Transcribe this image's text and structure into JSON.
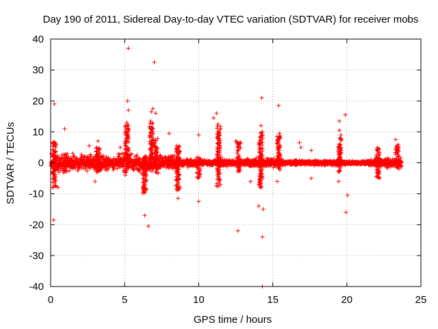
{
  "chart_data": {
    "type": "scatter",
    "title": "Day 190 of 2011, Sidereal Day-to-day VTEC variation (SDTVAR) for receiver mobs",
    "xlabel": "GPS time / hours",
    "ylabel": "SDTVAR / TECUs",
    "xlim": [
      0,
      25
    ],
    "ylim": [
      -40,
      40
    ],
    "xticks": [
      0,
      5,
      10,
      15,
      20,
      25
    ],
    "yticks": [
      -40,
      -30,
      -20,
      -10,
      0,
      10,
      20,
      30,
      40
    ],
    "grid": true,
    "marker": "+",
    "color": "#ff0000",
    "band": {
      "description": "dense continuous band of points around zero from 0 to ~23.7 h",
      "x_start": 0.0,
      "x_end": 23.7,
      "half_width_by_time": [
        [
          0.0,
          3.2
        ],
        [
          0.5,
          2.8
        ],
        [
          1.0,
          2.6
        ],
        [
          2.0,
          2.3
        ],
        [
          3.0,
          2.6
        ],
        [
          4.0,
          2.0
        ],
        [
          4.8,
          2.5
        ],
        [
          5.2,
          4.5
        ],
        [
          5.6,
          2.6
        ],
        [
          6.4,
          2.3
        ],
        [
          7.0,
          4.0
        ],
        [
          7.5,
          2.4
        ],
        [
          8.5,
          2.3
        ],
        [
          9.0,
          1.2
        ],
        [
          10.0,
          1.0
        ],
        [
          11.0,
          0.9
        ],
        [
          11.5,
          1.5
        ],
        [
          12.5,
          0.8
        ],
        [
          14.0,
          1.5
        ],
        [
          15.0,
          1.4
        ],
        [
          16.0,
          0.7
        ],
        [
          18.0,
          0.7
        ],
        [
          19.5,
          1.0
        ],
        [
          20.0,
          0.6
        ],
        [
          21.0,
          0.6
        ],
        [
          22.0,
          1.3
        ],
        [
          23.0,
          1.5
        ],
        [
          23.7,
          1.8
        ]
      ],
      "spikes": [
        [
          0.25,
          -8,
          7
        ],
        [
          1.0,
          -3,
          3
        ],
        [
          3.2,
          -3,
          5
        ],
        [
          5.15,
          -2,
          13
        ],
        [
          6.35,
          -10,
          2
        ],
        [
          6.8,
          -3,
          13
        ],
        [
          7.1,
          -2,
          8
        ],
        [
          8.6,
          -9,
          6
        ],
        [
          10.0,
          -5,
          2
        ],
        [
          11.35,
          -8,
          12
        ],
        [
          12.7,
          -3,
          7
        ],
        [
          14.2,
          -8,
          10
        ],
        [
          15.4,
          -3,
          9
        ],
        [
          19.5,
          -3,
          8
        ],
        [
          22.1,
          -5,
          5
        ],
        [
          23.4,
          -2,
          6
        ]
      ]
    },
    "outliers": [
      [
        0.15,
        -8
      ],
      [
        0.2,
        -18.5
      ],
      [
        0.25,
        19
      ],
      [
        0.5,
        -8
      ],
      [
        0.95,
        11
      ],
      [
        2.6,
        5.5
      ],
      [
        3.0,
        -6
      ],
      [
        3.2,
        7
      ],
      [
        4.7,
        5
      ],
      [
        5.25,
        37
      ],
      [
        5.2,
        20
      ],
      [
        5.25,
        17
      ],
      [
        5.15,
        13
      ],
      [
        6.3,
        -9
      ],
      [
        6.35,
        -17
      ],
      [
        6.6,
        -20.5
      ],
      [
        6.8,
        16.5
      ],
      [
        6.9,
        17.5
      ],
      [
        6.75,
        13.5
      ],
      [
        7.0,
        32.5
      ],
      [
        7.1,
        16
      ],
      [
        8.0,
        9.5
      ],
      [
        8.6,
        -11.5
      ],
      [
        8.5,
        5.5
      ],
      [
        10.0,
        -12.5
      ],
      [
        10.0,
        9
      ],
      [
        11.0,
        14.5
      ],
      [
        11.2,
        16
      ],
      [
        11.3,
        12.5
      ],
      [
        11.35,
        -7.5
      ],
      [
        11.3,
        10
      ],
      [
        12.5,
        7
      ],
      [
        12.65,
        -22
      ],
      [
        13.5,
        -6
      ],
      [
        14.05,
        -14
      ],
      [
        14.05,
        6
      ],
      [
        14.05,
        -7
      ],
      [
        14.25,
        21
      ],
      [
        14.2,
        12
      ],
      [
        14.3,
        10
      ],
      [
        14.3,
        -24
      ],
      [
        14.35,
        -15
      ],
      [
        14.3,
        -40
      ],
      [
        15.3,
        -6
      ],
      [
        15.4,
        18.5
      ],
      [
        15.45,
        9.5
      ],
      [
        15.5,
        8
      ],
      [
        16.8,
        6.5
      ],
      [
        16.9,
        5
      ],
      [
        17.6,
        -5
      ],
      [
        17.6,
        4
      ],
      [
        19.5,
        13.5
      ],
      [
        19.5,
        10.5
      ],
      [
        19.6,
        9
      ],
      [
        19.45,
        -6
      ],
      [
        19.9,
        15.5
      ],
      [
        19.95,
        -16
      ],
      [
        20.05,
        -10.5
      ],
      [
        22.05,
        4
      ],
      [
        23.3,
        7.5
      ]
    ]
  }
}
